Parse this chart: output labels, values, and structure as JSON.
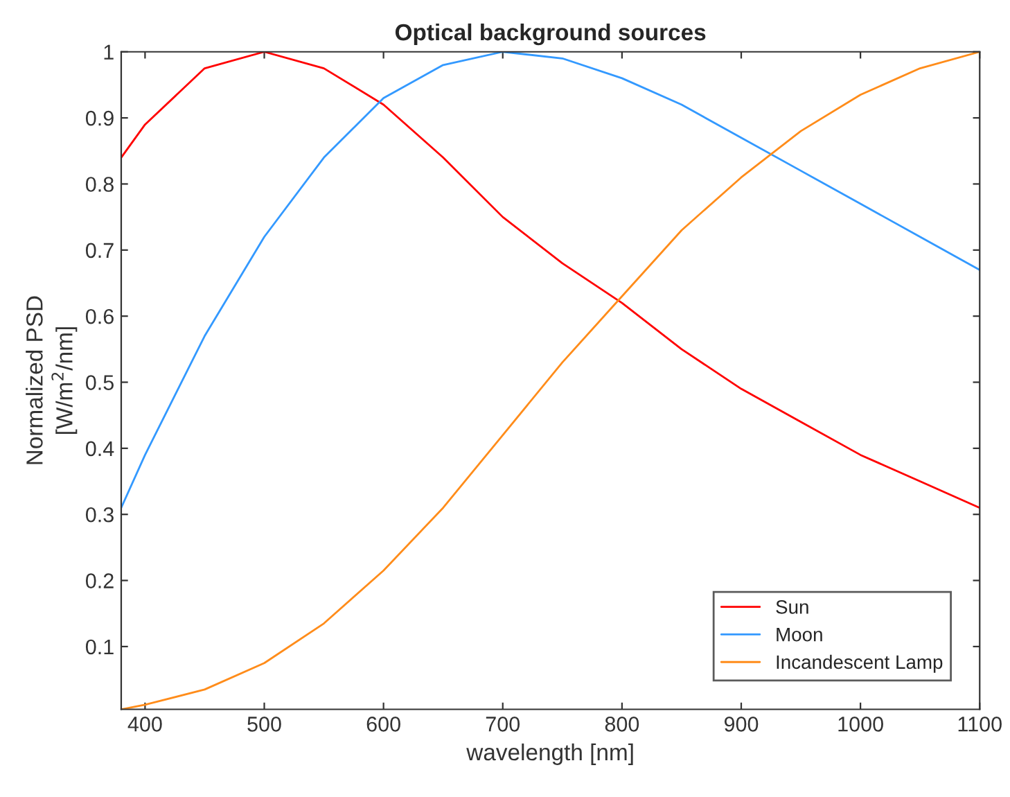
{
  "chart_data": {
    "type": "line",
    "title": "Optical background sources",
    "xlabel": "wavelength [nm]",
    "ylabel": "Normalized PSD\n[W/m$^{2}$/nm]",
    "x": [
      380,
      400,
      450,
      500,
      550,
      600,
      650,
      700,
      750,
      800,
      850,
      900,
      950,
      1000,
      1050,
      1100
    ],
    "series": [
      {
        "name": "Sun",
        "color": "#ff0000",
        "values": [
          0.84,
          0.89,
          0.975,
          1.0,
          0.975,
          0.92,
          0.84,
          0.75,
          0.68,
          0.62,
          0.55,
          0.49,
          0.44,
          0.39,
          0.35,
          0.31
        ]
      },
      {
        "name": "Moon",
        "color": "#3399ff",
        "values": [
          0.31,
          0.39,
          0.57,
          0.72,
          0.84,
          0.93,
          0.98,
          1.0,
          0.99,
          0.96,
          0.92,
          0.87,
          0.82,
          0.77,
          0.72,
          0.67
        ]
      },
      {
        "name": "Incandescent Lamp",
        "color": "#ff8c1a",
        "values": [
          0.005,
          0.012,
          0.035,
          0.075,
          0.135,
          0.215,
          0.31,
          0.42,
          0.53,
          0.63,
          0.73,
          0.81,
          0.88,
          0.935,
          0.975,
          1.0
        ]
      }
    ],
    "xlim": [
      380,
      1100
    ],
    "xticks": [
      400,
      500,
      600,
      700,
      800,
      900,
      1000,
      1100
    ],
    "ylim": [
      0.005,
      1
    ],
    "yticks": [
      0.1,
      0.2,
      0.3,
      0.4,
      0.5,
      0.6,
      0.7,
      0.8,
      0.9,
      1
    ],
    "grid": false,
    "legend": "bottom right",
    "marker": "none",
    "line_style": "solid"
  }
}
